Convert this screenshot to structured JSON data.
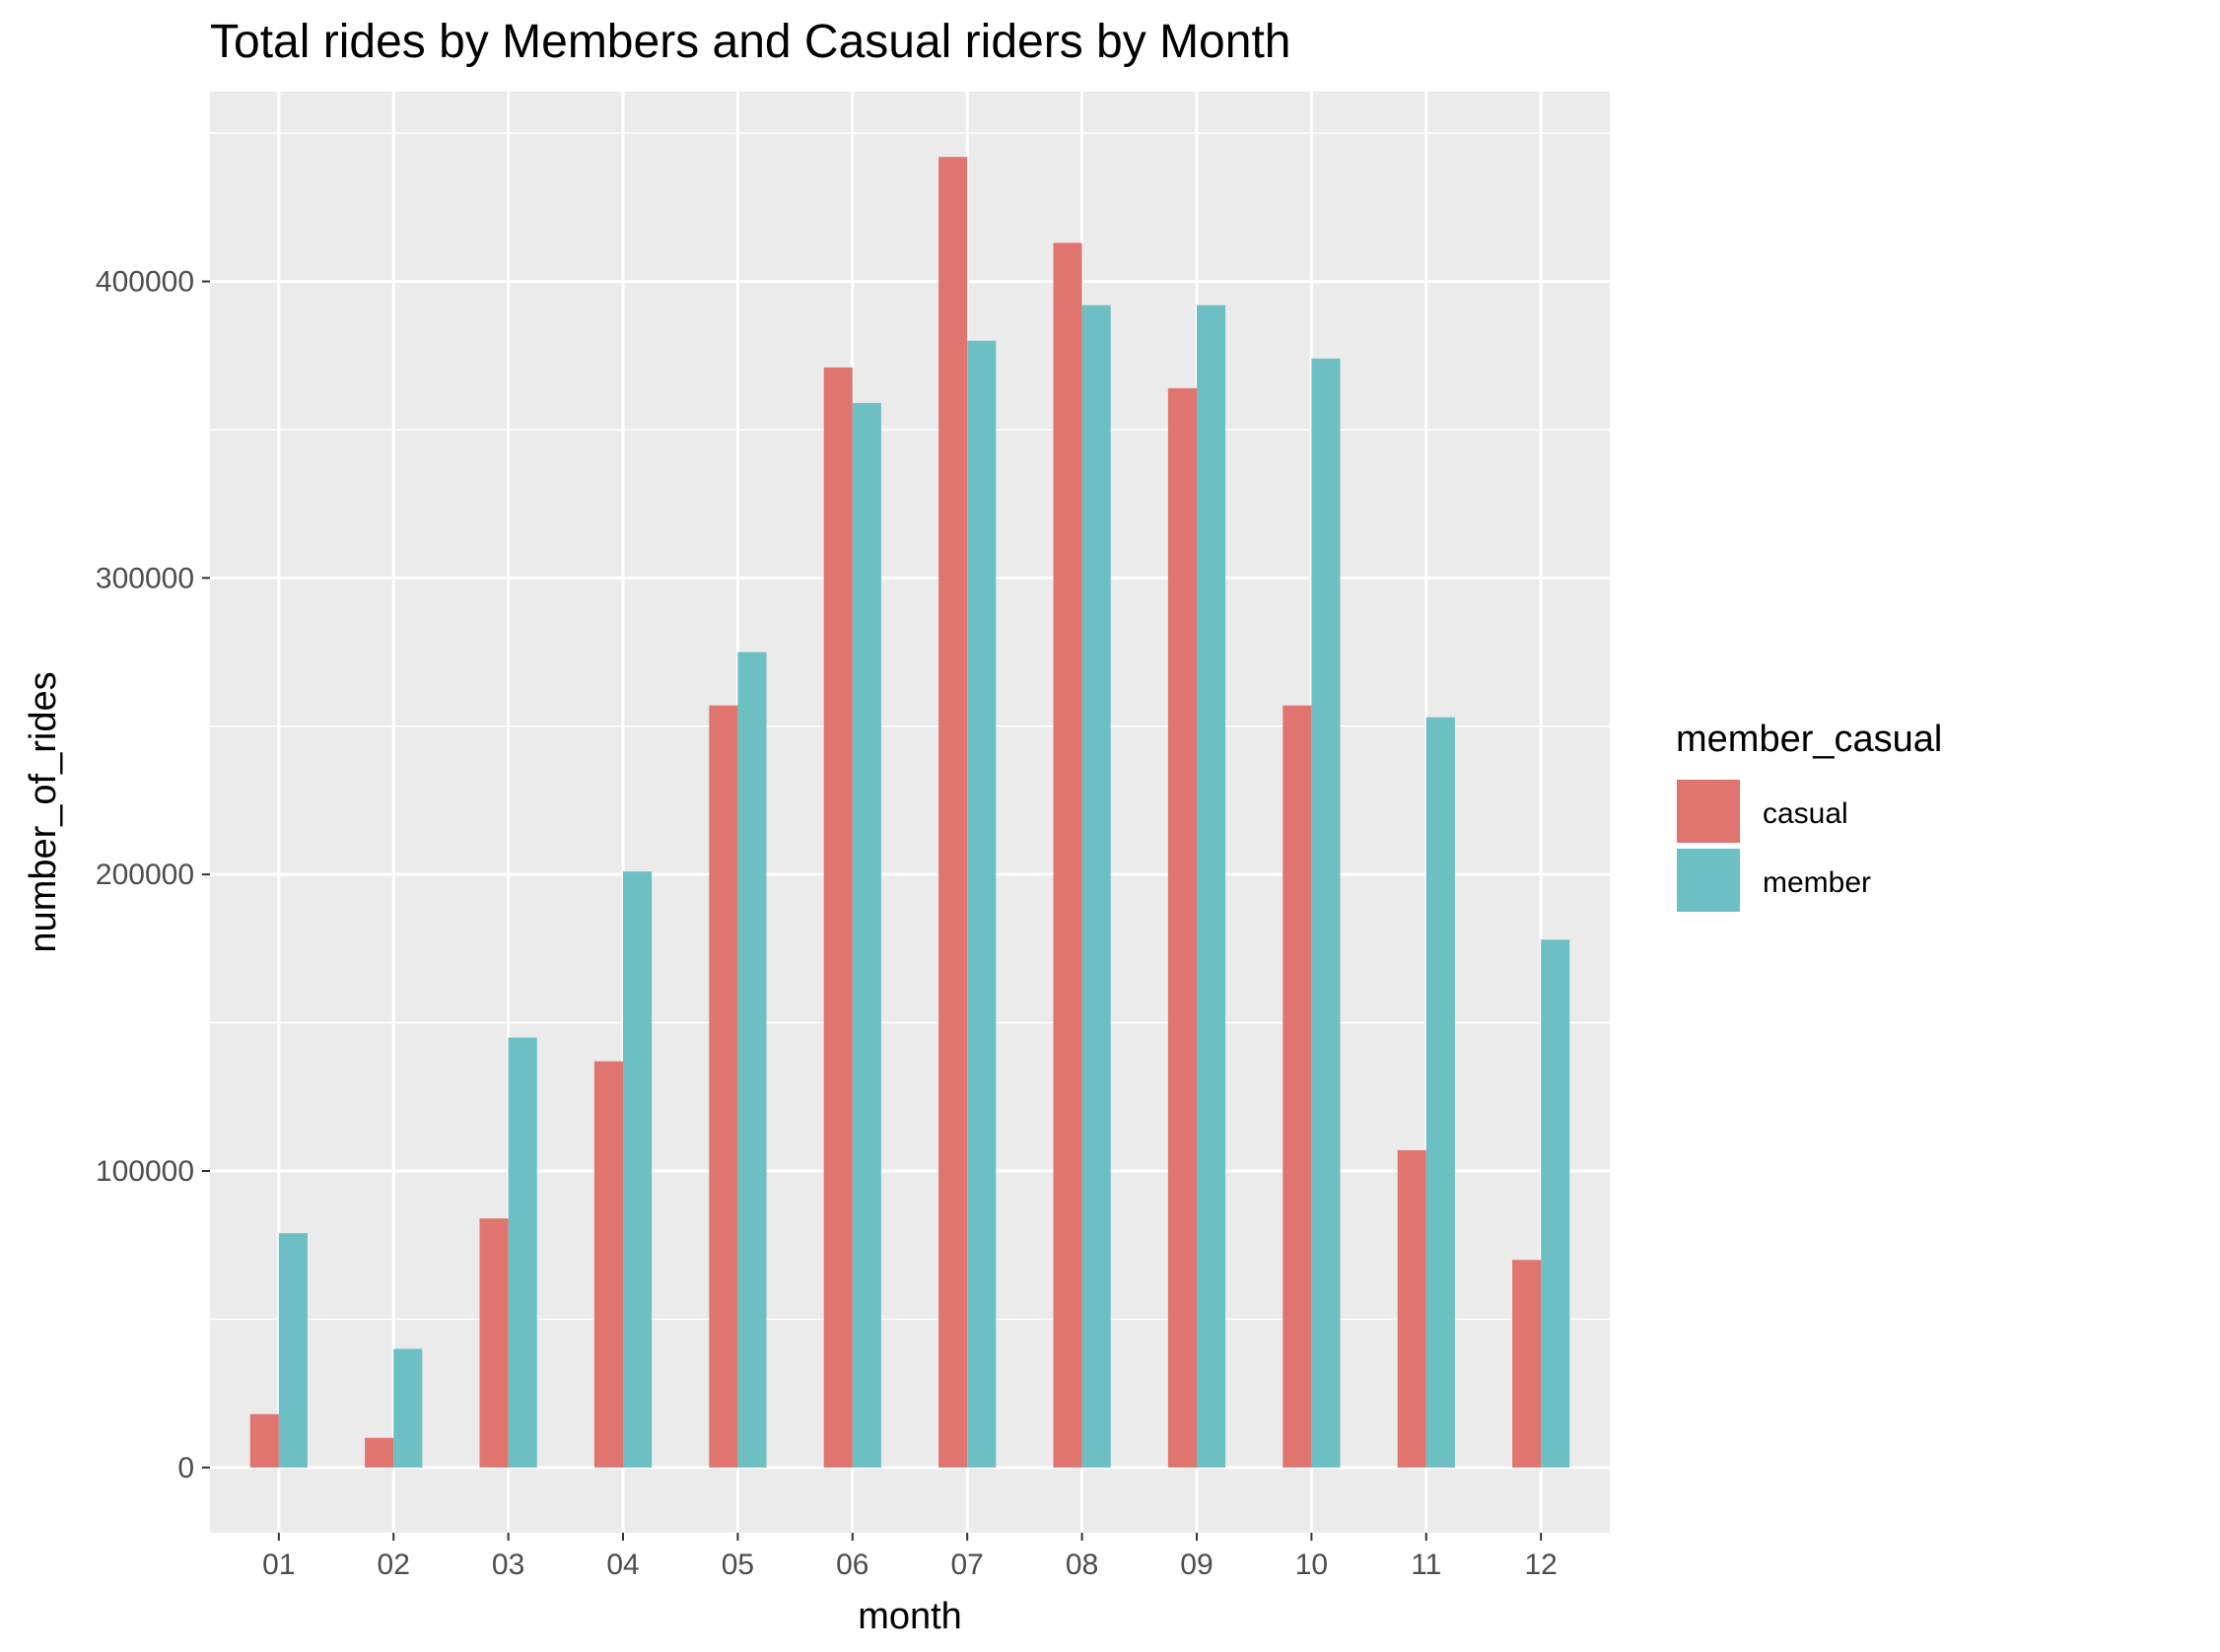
{
  "chart_data": {
    "type": "bar",
    "title": "Total rides by Members and Casual riders by Month",
    "xlabel": "month",
    "ylabel": "number_of_rides",
    "categories": [
      "01",
      "02",
      "03",
      "04",
      "05",
      "06",
      "07",
      "08",
      "09",
      "10",
      "11",
      "12"
    ],
    "series": [
      {
        "name": "casual",
        "color": "#DF756E",
        "values": [
          18000,
          10000,
          84000,
          137000,
          257000,
          371000,
          442000,
          413000,
          364000,
          257000,
          107000,
          70000
        ]
      },
      {
        "name": "member",
        "color": "#6CBFC3",
        "values": [
          79000,
          40000,
          145000,
          201000,
          275000,
          359000,
          380000,
          392000,
          392000,
          374000,
          253000,
          178000
        ]
      }
    ],
    "yticks": [
      0,
      100000,
      200000,
      300000,
      400000
    ],
    "ytick_labels": [
      "0",
      "100000",
      "200000",
      "300000",
      "400000"
    ],
    "ylim": [
      -22000,
      464000
    ],
    "legend": {
      "title": "member_casual",
      "position": "right"
    },
    "grid": true,
    "panel_background": "#EBEBEB",
    "grid_color": "#FFFFFF"
  }
}
